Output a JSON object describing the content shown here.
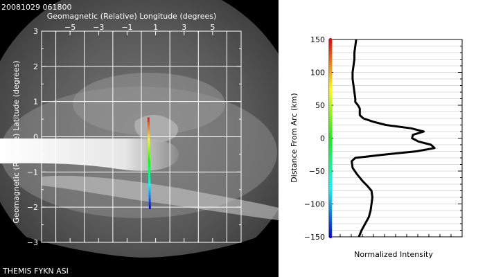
{
  "timestamp": "20081029 061800",
  "instrument": "THEMIS FYKN ASI",
  "asi_plot": {
    "xlabel": "Geomagnetic (Relative) Longitude (degrees)",
    "ylabel": "Geomagnetic (Relative) Latitude (degrees)",
    "x_ticks": [
      "−5",
      "−3",
      "−1",
      "1",
      "3",
      "5"
    ],
    "y_ticks": [
      "3",
      "2",
      "1",
      "0",
      "−1",
      "−2",
      "−3"
    ],
    "xlim": [
      -7,
      7
    ],
    "ylim": [
      -3,
      3
    ]
  },
  "profile_plot": {
    "xlabel": "Normalized Intensity",
    "ylabel": "Distance From Arc (km)",
    "y_ticks": [
      "150",
      "100",
      "50",
      "0",
      "−50",
      "−100",
      "−150"
    ],
    "ylim": [
      -150,
      150
    ]
  },
  "chart_data": {
    "type": "line",
    "xlabel": "Normalized Intensity",
    "ylabel": "Distance From Arc (km)",
    "ylim": [
      -150,
      150
    ],
    "distance_km": [
      -150,
      -140,
      -130,
      -120,
      -110,
      -100,
      -90,
      -80,
      -72,
      -65,
      -55,
      -45,
      -35,
      -30,
      -25,
      -20,
      -15,
      -10,
      -5,
      0,
      5,
      10,
      15,
      20,
      25,
      30,
      35,
      40,
      45,
      50,
      55,
      60,
      70,
      80,
      90,
      100,
      110,
      120,
      130,
      140,
      150
    ],
    "normalized_intensity": [
      0.1,
      0.13,
      0.17,
      0.21,
      0.23,
      0.24,
      0.25,
      0.24,
      0.19,
      0.14,
      0.08,
      0.03,
      0.02,
      0.06,
      0.38,
      0.74,
      0.94,
      0.9,
      0.76,
      0.69,
      0.7,
      0.82,
      0.68,
      0.4,
      0.26,
      0.15,
      0.11,
      0.11,
      0.11,
      0.09,
      0.06,
      0.06,
      0.05,
      0.04,
      0.03,
      0.03,
      0.04,
      0.05,
      0.05,
      0.06,
      0.07
    ],
    "color_scale_legend": "distance from arc, -150 km (blue) to 150 km (red)"
  }
}
